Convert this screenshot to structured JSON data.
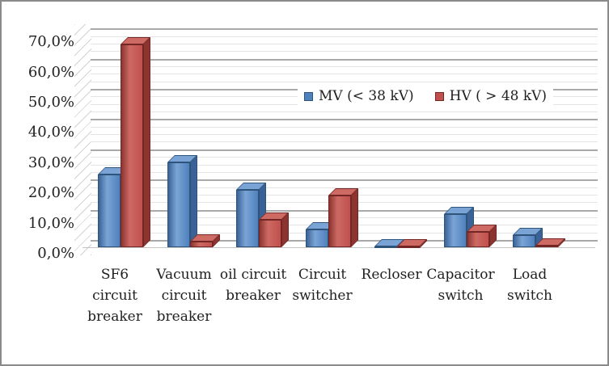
{
  "window": {
    "background": "#ffffff",
    "border_color": "#8a8a8a",
    "text_color": "#1f1f1f"
  },
  "chart_data": {
    "type": "bar",
    "style": "3d-clustered-columns",
    "title": "",
    "categories": [
      "SF6 circuit breaker",
      "Vacuum circuit breaker",
      "oil circuit breaker",
      "Circuit switcher",
      "Recloser",
      "Capacitor switch",
      "Load switch"
    ],
    "category_display_labels": [
      "SF6\ncircuit\nbreaker",
      "Vacuum\ncircuit\nbreaker",
      "oil circuit\nbreaker",
      "Circuit\nswitcher",
      "Recloser",
      "Capacitor\nswitch",
      "Load\nswitch"
    ],
    "series": [
      {
        "name": "MV (< 38 kV)",
        "color": "#4f81bd",
        "border_color": "#2f547c",
        "top_color": "#7aa4d6",
        "side_color": "#3a6296",
        "values": [
          24,
          28,
          19,
          6,
          0.3,
          11,
          4
        ]
      },
      {
        "name": "HV ( > 48 kV)",
        "color": "#c0504d",
        "border_color": "#732623",
        "top_color": "#cd6a63",
        "side_color": "#8c3430",
        "values": [
          67,
          2,
          9,
          17,
          0.3,
          5,
          0.5
        ]
      }
    ],
    "unit": "%",
    "ylim": [
      0,
      70
    ],
    "ytick_labels": [
      "0,0%",
      "10,0%",
      "20,0%",
      "30,0%",
      "40,0%",
      "50,0%",
      "60,0%",
      "70,0%"
    ],
    "major_step": 10,
    "minor_step": 2.5,
    "grid": true,
    "gridline_minor_color": "#e4e4e4",
    "gridline_major_color": "#a9a9a9",
    "legend_position": "inside-upper-center",
    "legend_entries": [
      "MV (< 38 kV)",
      "HV ( > 48 kV)"
    ]
  }
}
